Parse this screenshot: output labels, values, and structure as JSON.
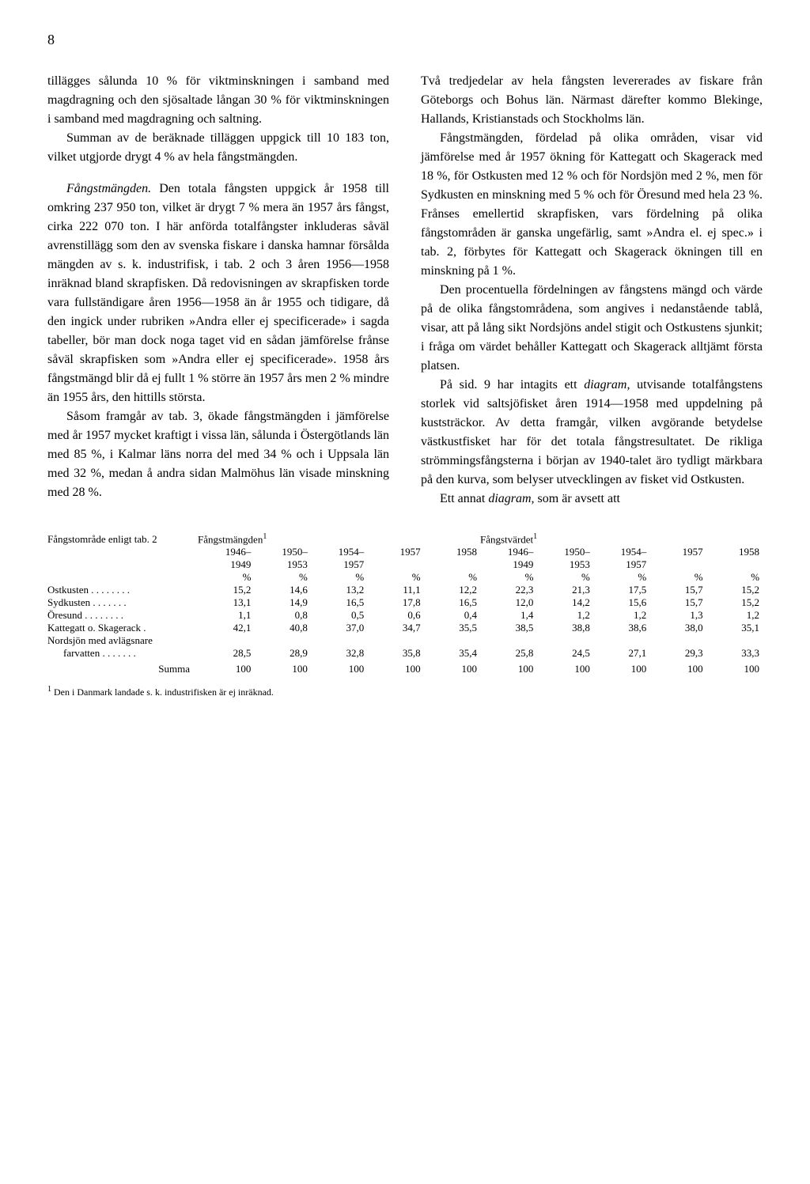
{
  "pageNumber": "8",
  "leftColumn": {
    "p1": "tillägges sålunda 10 % för viktminskningen i samband med magdragning och den sjösaltade långan 30 % för viktminskningen i samband med magdragning och saltning.",
    "p2": "Summan av de beräknade tilläggen uppgick till 10 183 ton, vilket utgjorde drygt 4 % av hela fångstmängden.",
    "p3a": "Fångstmängden.",
    "p3b": " Den totala fångsten uppgick år 1958 till omkring 237 950 ton, vilket är drygt 7 % mera än 1957 års fångst, cirka 222 070 ton. I här anförda totalfångster inkluderas såväl avrenstillägg som den av svenska fiskare i danska hamnar försålda mängden av s. k. industrifisk, i tab. 2 och 3 åren 1956—1958 inräknad bland skrapfisken. Då redovisningen av skrapfisken torde vara fullständigare åren 1956—1958 än år 1955 och tidigare, då den ingick under rubriken »Andra eller ej specificerade» i sagda tabeller, bör man dock noga taget vid en sådan jämförelse frånse såväl skrapfisken som »Andra eller ej specificerade». 1958 års fångstmängd blir då ej fullt 1 % större än 1957 års men 2 % mindre än 1955 års, den hittills största.",
    "p4": "Såsom framgår av tab. 3, ökade fångstmängden i jämförelse med år 1957 mycket kraftigt i vissa län, sålunda i Östergötlands län med 85 %, i Kalmar läns norra del med 34 % och i Uppsala län med 32 %, medan å andra sidan Malmöhus län visade minskning med 28 %."
  },
  "rightColumn": {
    "p1": "Två tredjedelar av hela fångsten levererades av fiskare från Göteborgs och Bohus län. Närmast därefter kommo Blekinge, Hallands, Kristianstads och Stockholms län.",
    "p2": "Fångstmängden, fördelad på olika områden, visar vid jämförelse med år 1957 ökning för Kattegatt och Skagerack med 18 %, för Ostkusten med 12 % och för Nordsjön med 2 %, men för Sydkusten en minskning med 5 % och för Öresund med hela 23 %. Frånses emellertid skrapfisken, vars fördelning på olika fångstområden är ganska ungefärlig, samt »Andra el. ej spec.» i tab. 2, förbytes för Kattegatt och Skagerack ökningen till en minskning på 1 %.",
    "p3": "Den procentuella fördelningen av fångstens mängd och värde på de olika fångstområdena, som angives i nedanstående tablå, visar, att på lång sikt Nordsjöns andel stigit och Ostkustens sjunkit; i fråga om värdet behåller Kattegatt och Skagerack alltjämt första platsen.",
    "p4a": "På sid. 9 har intagits ett ",
    "p4b": "diagram,",
    "p4c": " utvisande totalfångstens storlek vid saltsjöfisket åren 1914—1958 med uppdelning på kuststräckor. Av detta framgår, vilken avgörande betydelse västkustfisket har för det totala fångstresultatet. De rikliga strömmingsfångsterna i början av 1940-talet äro tydligt märkbara på den kurva, som belyser utvecklingen av fisket vid Ostkusten.",
    "p5a": "Ett annat ",
    "p5b": "diagram,",
    "p5c": " som är avsett att"
  },
  "table": {
    "rowHeaderLabel": "Fångstområde enligt tab. 2",
    "group1Label": "Fångstmängden",
    "group2Label": "Fångstvärdet",
    "sup1": "1",
    "sup2": "1",
    "periods": [
      "1946–1949",
      "1950–1953",
      "1954–1957",
      "1957",
      "1958"
    ],
    "unit": "%",
    "rows": [
      {
        "label": "Ostkusten . . . . . . . .",
        "g1": [
          "15,2",
          "14,6",
          "13,2",
          "11,1",
          "12,2"
        ],
        "g2": [
          "22,3",
          "21,3",
          "17,5",
          "15,7",
          "15,2"
        ]
      },
      {
        "label": "Sydkusten . . . . . . .",
        "g1": [
          "13,1",
          "14,9",
          "16,5",
          "17,8",
          "16,5"
        ],
        "g2": [
          "12,0",
          "14,2",
          "15,6",
          "15,7",
          "15,2"
        ]
      },
      {
        "label": "Öresund . . . . . . . .",
        "g1": [
          "1,1",
          "0,8",
          "0,5",
          "0,6",
          "0,4"
        ],
        "g2": [
          "1,4",
          "1,2",
          "1,2",
          "1,3",
          "1,2"
        ]
      },
      {
        "label": "Kattegatt o. Skagerack .",
        "g1": [
          "42,1",
          "40,8",
          "37,0",
          "34,7",
          "35,5"
        ],
        "g2": [
          "38,5",
          "38,8",
          "38,6",
          "38,0",
          "35,1"
        ]
      },
      {
        "label": "Nordsjön med avlägsnare",
        "g1": [
          "",
          "",
          "",
          "",
          ""
        ],
        "g2": [
          "",
          "",
          "",
          "",
          ""
        ]
      },
      {
        "label": "farvatten . . . . . . .",
        "indent": true,
        "g1": [
          "28,5",
          "28,9",
          "32,8",
          "35,8",
          "35,4"
        ],
        "g2": [
          "25,8",
          "24,5",
          "27,1",
          "29,3",
          "33,3"
        ]
      }
    ],
    "summaLabel": "Summa",
    "summa": {
      "g1": [
        "100",
        "100",
        "100",
        "100",
        "100"
      ],
      "g2": [
        "100",
        "100",
        "100",
        "100",
        "100"
      ]
    }
  },
  "footnote": {
    "sup": "1",
    "text": " Den i Danmark landade s. k. industrifisken är ej inräknad."
  }
}
